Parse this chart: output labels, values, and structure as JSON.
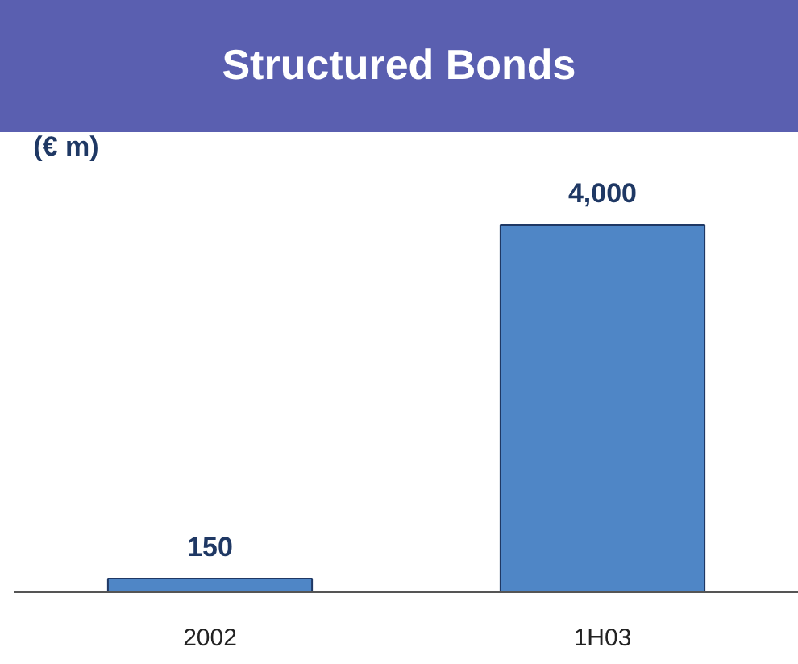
{
  "chart_data": {
    "type": "bar",
    "title": "Structured Bonds",
    "ylabel": "(€ m)",
    "categories": [
      "2002",
      "1H03"
    ],
    "values": [
      150,
      4000
    ],
    "value_labels": [
      "150",
      "4,000"
    ],
    "color": "#4f86c6",
    "data_labels": true,
    "grid": false
  }
}
